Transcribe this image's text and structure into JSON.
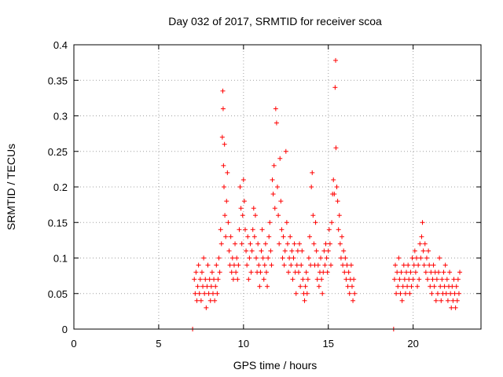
{
  "chart_data": {
    "type": "scatter",
    "title": "Day 032 of 2017, SRMTID for receiver scoa",
    "xlabel": "GPS time / hours",
    "ylabel": "SRMTID / TECUs",
    "xlim": [
      0,
      24
    ],
    "ylim": [
      0,
      0.4
    ],
    "xticks": [
      "0",
      "5",
      "10",
      "15",
      "20"
    ],
    "yticks": [
      "0",
      "0.05",
      "0.1",
      "0.15",
      "0.2",
      "0.25",
      "0.3",
      "0.35",
      "0.4"
    ],
    "grid": true,
    "legend": "none",
    "marker": "plus",
    "color": "#ff0000",
    "series": [
      {
        "points": [
          [
            7.0,
            0.0
          ],
          [
            18.85,
            0.0
          ],
          [
            7.1,
            0.07
          ],
          [
            7.15,
            0.05
          ],
          [
            7.2,
            0.08
          ],
          [
            7.25,
            0.04
          ],
          [
            7.3,
            0.06
          ],
          [
            7.35,
            0.09
          ],
          [
            7.4,
            0.05
          ],
          [
            7.45,
            0.07
          ],
          [
            7.5,
            0.04
          ],
          [
            7.55,
            0.08
          ],
          [
            7.6,
            0.06
          ],
          [
            7.65,
            0.1
          ],
          [
            7.7,
            0.05
          ],
          [
            7.75,
            0.07
          ],
          [
            7.8,
            0.03
          ],
          [
            7.85,
            0.06
          ],
          [
            7.9,
            0.09
          ],
          [
            7.95,
            0.05
          ],
          [
            8.0,
            0.07
          ],
          [
            8.05,
            0.04
          ],
          [
            8.1,
            0.06
          ],
          [
            8.15,
            0.08
          ],
          [
            8.2,
            0.05
          ],
          [
            8.25,
            0.07
          ],
          [
            8.3,
            0.04
          ],
          [
            8.35,
            0.06
          ],
          [
            8.4,
            0.09
          ],
          [
            8.45,
            0.05
          ],
          [
            8.5,
            0.07
          ],
          [
            8.55,
            0.1
          ],
          [
            8.6,
            0.08
          ],
          [
            8.65,
            0.14
          ],
          [
            8.7,
            0.12
          ],
          [
            8.75,
            0.27
          ],
          [
            8.78,
            0.335
          ],
          [
            8.8,
            0.31
          ],
          [
            8.82,
            0.23
          ],
          [
            8.85,
            0.2
          ],
          [
            8.88,
            0.26
          ],
          [
            8.9,
            0.16
          ],
          [
            8.95,
            0.13
          ],
          [
            9.0,
            0.18
          ],
          [
            9.05,
            0.22
          ],
          [
            9.1,
            0.15
          ],
          [
            9.15,
            0.11
          ],
          [
            9.2,
            0.09
          ],
          [
            9.25,
            0.13
          ],
          [
            9.3,
            0.08
          ],
          [
            9.35,
            0.1
          ],
          [
            9.4,
            0.07
          ],
          [
            9.45,
            0.09
          ],
          [
            9.5,
            0.12
          ],
          [
            9.55,
            0.08
          ],
          [
            9.6,
            0.1
          ],
          [
            9.65,
            0.07
          ],
          [
            9.7,
            0.09
          ],
          [
            9.75,
            0.14
          ],
          [
            9.8,
            0.2
          ],
          [
            9.85,
            0.17
          ],
          [
            9.9,
            0.12
          ],
          [
            9.95,
            0.16
          ],
          [
            10.0,
            0.21
          ],
          [
            10.05,
            0.18
          ],
          [
            10.1,
            0.14
          ],
          [
            10.15,
            0.11
          ],
          [
            10.2,
            0.09
          ],
          [
            10.25,
            0.13
          ],
          [
            10.3,
            0.07
          ],
          [
            10.35,
            0.1
          ],
          [
            10.4,
            0.12
          ],
          [
            10.45,
            0.08
          ],
          [
            10.5,
            0.11
          ],
          [
            10.55,
            0.14
          ],
          [
            10.6,
            0.17
          ],
          [
            10.65,
            0.13
          ],
          [
            10.7,
            0.16
          ],
          [
            10.75,
            0.1
          ],
          [
            10.8,
            0.08
          ],
          [
            10.85,
            0.12
          ],
          [
            10.9,
            0.09
          ],
          [
            10.95,
            0.06
          ],
          [
            11.0,
            0.08
          ],
          [
            11.05,
            0.11
          ],
          [
            11.1,
            0.14
          ],
          [
            11.15,
            0.1
          ],
          [
            11.2,
            0.07
          ],
          [
            11.25,
            0.09
          ],
          [
            11.3,
            0.12
          ],
          [
            11.35,
            0.08
          ],
          [
            11.4,
            0.06
          ],
          [
            11.45,
            0.1
          ],
          [
            11.5,
            0.13
          ],
          [
            11.55,
            0.15
          ],
          [
            11.6,
            0.11
          ],
          [
            11.65,
            0.09
          ],
          [
            11.7,
            0.21
          ],
          [
            11.75,
            0.19
          ],
          [
            11.8,
            0.23
          ],
          [
            11.85,
            0.17
          ],
          [
            11.9,
            0.31
          ],
          [
            11.95,
            0.29
          ],
          [
            12.0,
            0.2
          ],
          [
            12.05,
            0.16
          ],
          [
            12.1,
            0.12
          ],
          [
            12.15,
            0.24
          ],
          [
            12.2,
            0.18
          ],
          [
            12.25,
            0.14
          ],
          [
            12.3,
            0.1
          ],
          [
            12.35,
            0.13
          ],
          [
            12.4,
            0.09
          ],
          [
            12.45,
            0.11
          ],
          [
            12.5,
            0.25
          ],
          [
            12.55,
            0.15
          ],
          [
            12.6,
            0.12
          ],
          [
            12.65,
            0.08
          ],
          [
            12.7,
            0.1
          ],
          [
            12.75,
            0.13
          ],
          [
            12.8,
            0.09
          ],
          [
            12.85,
            0.11
          ],
          [
            12.9,
            0.07
          ],
          [
            12.95,
            0.1
          ],
          [
            13.0,
            0.12
          ],
          [
            13.05,
            0.08
          ],
          [
            13.1,
            0.05
          ],
          [
            13.15,
            0.09
          ],
          [
            13.2,
            0.11
          ],
          [
            13.25,
            0.08
          ],
          [
            13.3,
            0.12
          ],
          [
            13.35,
            0.06
          ],
          [
            13.4,
            0.09
          ],
          [
            13.45,
            0.11
          ],
          [
            13.5,
            0.07
          ],
          [
            13.55,
            0.05
          ],
          [
            13.6,
            0.04
          ],
          [
            13.65,
            0.06
          ],
          [
            13.7,
            0.08
          ],
          [
            13.75,
            0.05
          ],
          [
            13.8,
            0.07
          ],
          [
            13.85,
            0.1
          ],
          [
            13.9,
            0.13
          ],
          [
            13.95,
            0.09
          ],
          [
            14.0,
            0.2
          ],
          [
            14.05,
            0.22
          ],
          [
            14.1,
            0.16
          ],
          [
            14.15,
            0.12
          ],
          [
            14.2,
            0.09
          ],
          [
            14.25,
            0.15
          ],
          [
            14.3,
            0.11
          ],
          [
            14.35,
            0.07
          ],
          [
            14.4,
            0.09
          ],
          [
            14.45,
            0.06
          ],
          [
            14.5,
            0.08
          ],
          [
            14.55,
            0.1
          ],
          [
            14.6,
            0.07
          ],
          [
            14.65,
            0.05
          ],
          [
            14.7,
            0.08
          ],
          [
            14.75,
            0.11
          ],
          [
            14.8,
            0.09
          ],
          [
            14.85,
            0.12
          ],
          [
            14.9,
            0.1
          ],
          [
            14.95,
            0.08
          ],
          [
            15.0,
            0.11
          ],
          [
            15.05,
            0.14
          ],
          [
            15.1,
            0.12
          ],
          [
            15.15,
            0.09
          ],
          [
            15.2,
            0.15
          ],
          [
            15.25,
            0.19
          ],
          [
            15.3,
            0.21
          ],
          [
            15.35,
            0.19
          ],
          [
            15.4,
            0.34
          ],
          [
            15.43,
            0.378
          ],
          [
            15.45,
            0.255
          ],
          [
            15.5,
            0.2
          ],
          [
            15.55,
            0.18
          ],
          [
            15.6,
            0.14
          ],
          [
            15.65,
            0.16
          ],
          [
            15.7,
            0.12
          ],
          [
            15.75,
            0.1
          ],
          [
            15.8,
            0.13
          ],
          [
            15.85,
            0.09
          ],
          [
            15.9,
            0.11
          ],
          [
            15.95,
            0.08
          ],
          [
            16.0,
            0.1
          ],
          [
            16.05,
            0.07
          ],
          [
            16.1,
            0.09
          ],
          [
            16.15,
            0.06
          ],
          [
            16.2,
            0.08
          ],
          [
            16.25,
            0.05
          ],
          [
            16.3,
            0.07
          ],
          [
            16.35,
            0.09
          ],
          [
            16.4,
            0.06
          ],
          [
            16.45,
            0.04
          ],
          [
            16.5,
            0.07
          ],
          [
            16.55,
            0.05
          ],
          [
            18.9,
            0.07
          ],
          [
            18.95,
            0.09
          ],
          [
            19.0,
            0.05
          ],
          [
            19.05,
            0.08
          ],
          [
            19.1,
            0.06
          ],
          [
            19.15,
            0.1
          ],
          [
            19.2,
            0.07
          ],
          [
            19.25,
            0.05
          ],
          [
            19.3,
            0.08
          ],
          [
            19.35,
            0.04
          ],
          [
            19.4,
            0.06
          ],
          [
            19.45,
            0.09
          ],
          [
            19.5,
            0.07
          ],
          [
            19.55,
            0.05
          ],
          [
            19.6,
            0.08
          ],
          [
            19.65,
            0.06
          ],
          [
            19.7,
            0.09
          ],
          [
            19.75,
            0.07
          ],
          [
            19.8,
            0.05
          ],
          [
            19.85,
            0.08
          ],
          [
            19.9,
            0.06
          ],
          [
            19.95,
            0.1
          ],
          [
            20.0,
            0.07
          ],
          [
            20.05,
            0.09
          ],
          [
            20.1,
            0.11
          ],
          [
            20.15,
            0.08
          ],
          [
            20.2,
            0.1
          ],
          [
            20.25,
            0.06
          ],
          [
            20.3,
            0.09
          ],
          [
            20.35,
            0.07
          ],
          [
            20.4,
            0.12
          ],
          [
            20.45,
            0.1
          ],
          [
            20.5,
            0.13
          ],
          [
            20.55,
            0.15
          ],
          [
            20.6,
            0.11
          ],
          [
            20.65,
            0.09
          ],
          [
            20.7,
            0.12
          ],
          [
            20.75,
            0.08
          ],
          [
            20.8,
            0.1
          ],
          [
            20.85,
            0.07
          ],
          [
            20.9,
            0.11
          ],
          [
            20.95,
            0.09
          ],
          [
            21.0,
            0.06
          ],
          [
            21.05,
            0.08
          ],
          [
            21.1,
            0.05
          ],
          [
            21.15,
            0.07
          ],
          [
            21.2,
            0.09
          ],
          [
            21.25,
            0.06
          ],
          [
            21.3,
            0.08
          ],
          [
            21.35,
            0.04
          ],
          [
            21.4,
            0.07
          ],
          [
            21.45,
            0.05
          ],
          [
            21.5,
            0.08
          ],
          [
            21.55,
            0.1
          ],
          [
            21.6,
            0.06
          ],
          [
            21.65,
            0.04
          ],
          [
            21.7,
            0.07
          ],
          [
            21.75,
            0.05
          ],
          [
            21.8,
            0.08
          ],
          [
            21.85,
            0.06
          ],
          [
            21.9,
            0.09
          ],
          [
            21.95,
            0.05
          ],
          [
            22.0,
            0.07
          ],
          [
            22.05,
            0.04
          ],
          [
            22.1,
            0.06
          ],
          [
            22.15,
            0.08
          ],
          [
            22.2,
            0.05
          ],
          [
            22.25,
            0.03
          ],
          [
            22.3,
            0.06
          ],
          [
            22.35,
            0.04
          ],
          [
            22.4,
            0.07
          ],
          [
            22.45,
            0.05
          ],
          [
            22.5,
            0.03
          ],
          [
            22.55,
            0.06
          ],
          [
            22.6,
            0.04
          ],
          [
            22.65,
            0.07
          ],
          [
            22.7,
            0.05
          ],
          [
            22.75,
            0.08
          ]
        ]
      }
    ]
  }
}
